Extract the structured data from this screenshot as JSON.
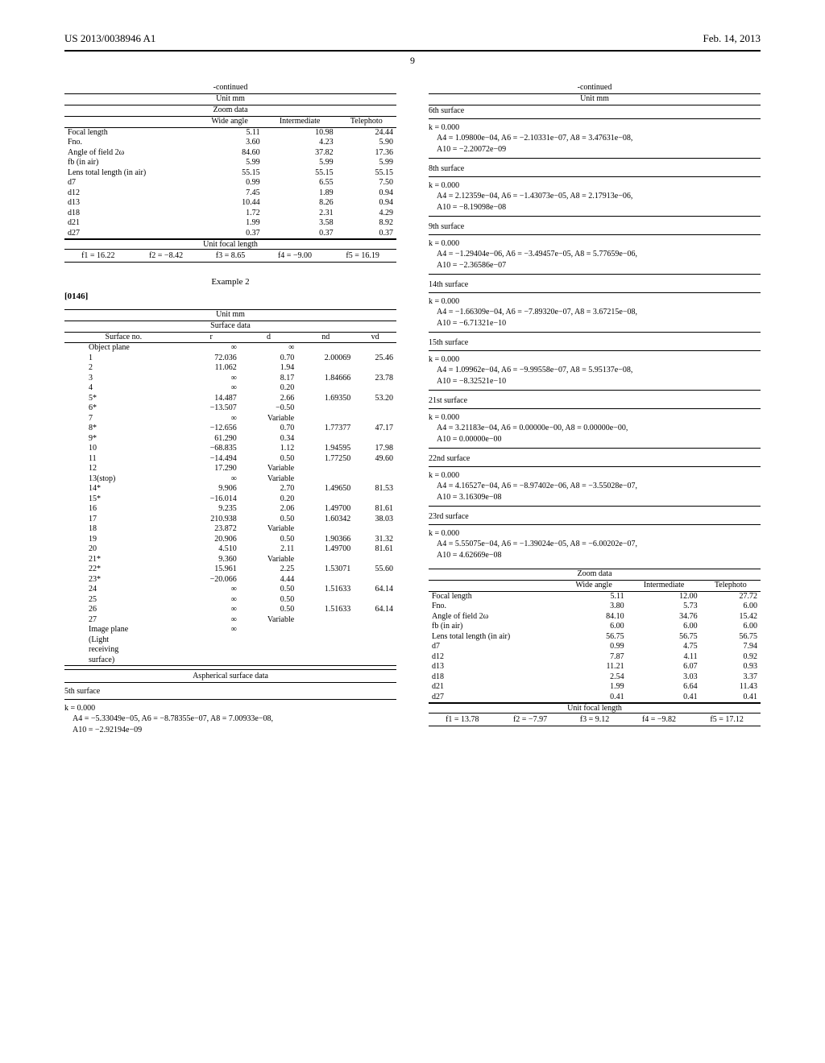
{
  "header": {
    "left": "US 2013/0038946 A1",
    "right": "Feb. 14, 2013",
    "pagenum": "9"
  },
  "left": {
    "continued": "-continued",
    "unit": "Unit mm",
    "zoom_title": "Zoom data",
    "zoom_headers": [
      "",
      "Wide angle",
      "Intermediate",
      "Telephoto"
    ],
    "zoom_rows": [
      [
        "Focal length",
        "5.11",
        "10.98",
        "24.44"
      ],
      [
        "Fno.",
        "3.60",
        "4.23",
        "5.90"
      ],
      [
        "Angle of field 2ω",
        "84.60",
        "37.82",
        "17.36"
      ],
      [
        "fb (in air)",
        "5.99",
        "5.99",
        "5.99"
      ],
      [
        "Lens total length (in air)",
        "55.15",
        "55.15",
        "55.15"
      ],
      [
        "d7",
        "0.99",
        "6.55",
        "7.50"
      ],
      [
        "d12",
        "7.45",
        "1.89",
        "0.94"
      ],
      [
        "d13",
        "10.44",
        "8.26",
        "0.94"
      ],
      [
        "d18",
        "1.72",
        "2.31",
        "4.29"
      ],
      [
        "d21",
        "1.99",
        "3.58",
        "8.92"
      ],
      [
        "d27",
        "0.37",
        "0.37",
        "0.37"
      ]
    ],
    "unit_focal_title": "Unit focal length",
    "unit_focal": [
      "f1 = 16.22",
      "f2 = −8.42",
      "f3 = 8.65",
      "f4 = −9.00",
      "f5 = 16.19"
    ],
    "example2": "Example 2",
    "para": "[0146]",
    "surface_title": "Surface data",
    "surface_headers": [
      "Surface no.",
      "r",
      "d",
      "nd",
      "vd"
    ],
    "surface_rows": [
      [
        "Object plane",
        "∞",
        "∞",
        "",
        ""
      ],
      [
        "1",
        "72.036",
        "0.70",
        "2.00069",
        "25.46"
      ],
      [
        "2",
        "11.062",
        "1.94",
        "",
        ""
      ],
      [
        "3",
        "∞",
        "8.17",
        "1.84666",
        "23.78"
      ],
      [
        "4",
        "∞",
        "0.20",
        "",
        ""
      ],
      [
        "5*",
        "14.487",
        "2.66",
        "1.69350",
        "53.20"
      ],
      [
        "6*",
        "−13.507",
        "−0.50",
        "",
        ""
      ],
      [
        "7",
        "∞",
        "Variable",
        "",
        ""
      ],
      [
        "8*",
        "−12.656",
        "0.70",
        "1.77377",
        "47.17"
      ],
      [
        "9*",
        "61.290",
        "0.34",
        "",
        ""
      ],
      [
        "10",
        "−68.835",
        "1.12",
        "1.94595",
        "17.98"
      ],
      [
        "11",
        "−14.494",
        "0.50",
        "1.77250",
        "49.60"
      ],
      [
        "12",
        "17.290",
        "Variable",
        "",
        ""
      ],
      [
        "13(stop)",
        "∞",
        "Variable",
        "",
        ""
      ],
      [
        "14*",
        "9.906",
        "2.70",
        "1.49650",
        "81.53"
      ],
      [
        "15*",
        "−16.014",
        "0.20",
        "",
        ""
      ],
      [
        "16",
        "9.235",
        "2.06",
        "1.49700",
        "81.61"
      ],
      [
        "17",
        "210.938",
        "0.50",
        "1.60342",
        "38.03"
      ],
      [
        "18",
        "23.872",
        "Variable",
        "",
        ""
      ],
      [
        "19",
        "20.906",
        "0.50",
        "1.90366",
        "31.32"
      ],
      [
        "20",
        "4.510",
        "2.11",
        "1.49700",
        "81.61"
      ],
      [
        "21*",
        "9.360",
        "Variable",
        "",
        ""
      ],
      [
        "22*",
        "15.961",
        "2.25",
        "1.53071",
        "55.60"
      ],
      [
        "23*",
        "−20.066",
        "4.44",
        "",
        ""
      ],
      [
        "24",
        "∞",
        "0.50",
        "1.51633",
        "64.14"
      ],
      [
        "25",
        "∞",
        "0.50",
        "",
        ""
      ],
      [
        "26",
        "∞",
        "0.50",
        "1.51633",
        "64.14"
      ],
      [
        "27",
        "∞",
        "Variable",
        "",
        ""
      ],
      [
        "Image plane",
        "∞",
        "",
        "",
        ""
      ],
      [
        "(Light",
        "",
        "",
        "",
        ""
      ],
      [
        "receiving",
        "",
        "",
        "",
        ""
      ],
      [
        "surface)",
        "",
        "",
        "",
        ""
      ]
    ],
    "asph_title": "Aspherical surface data",
    "asph_5th": "5th surface",
    "asph_5th_k": "k = 0.000",
    "asph_5th_a": "A4 = −5.33049e−05, A6 = −8.78355e−07, A8 = 7.00933e−08,",
    "asph_5th_b": "A10 = −2.92194e−09"
  },
  "right": {
    "continued": "-continued",
    "unit": "Unit mm",
    "blocks": [
      {
        "surf": "6th surface",
        "k": "k = 0.000",
        "a": "A4 = 1.09800e−04, A6 = −2.10331e−07, A8 = 3.47631e−08,",
        "b": "A10 = −2.20072e−09"
      },
      {
        "surf": "8th surface",
        "k": "k = 0.000",
        "a": "A4 = 2.12359e−04, A6 = −1.43073e−05, A8 = 2.17913e−06,",
        "b": "A10 = −8.19098e−08"
      },
      {
        "surf": "9th surface",
        "k": "k = 0.000",
        "a": "A4 = −1.29404e−06, A6 = −3.49457e−05, A8 = 5.77659e−06,",
        "b": "A10 = −2.36586e−07"
      },
      {
        "surf": "14th surface",
        "k": "k = 0.000",
        "a": "A4 = −1.66309e−04, A6 = −7.89320e−07, A8 = 3.67215e−08,",
        "b": "A10 = −6.71321e−10"
      },
      {
        "surf": "15th surface",
        "k": "k = 0.000",
        "a": "A4 = 1.09962e−04, A6 = −9.99558e−07, A8 = 5.95137e−08,",
        "b": "A10 = −8.32521e−10"
      },
      {
        "surf": "21st surface",
        "k": "k = 0.000",
        "a": "A4 = 3.21183e−04, A6 = 0.00000e−00, A8 = 0.00000e−00,",
        "b": "A10 = 0.00000e−00"
      },
      {
        "surf": "22nd surface",
        "k": "k = 0.000",
        "a": "A4 = 4.16527e−04, A6 = −8.97402e−06, A8 = −3.55028e−07,",
        "b": "A10 = 3.16309e−08"
      },
      {
        "surf": "23rd surface",
        "k": "k = 0.000",
        "a": "A4 = 5.55075e−04, A6 = −1.39024e−05, A8 = −6.00202e−07,",
        "b": "A10 = 4.62669e−08"
      }
    ],
    "zoom_title": "Zoom data",
    "zoom_headers": [
      "",
      "Wide angle",
      "Intermediate",
      "Telephoto"
    ],
    "zoom_rows": [
      [
        "Focal length",
        "5.11",
        "12.00",
        "27.72"
      ],
      [
        "Fno.",
        "3.80",
        "5.73",
        "6.00"
      ],
      [
        "Angle of field 2ω",
        "84.10",
        "34.76",
        "15.42"
      ],
      [
        "fb (in air)",
        "6.00",
        "6.00",
        "6.00"
      ],
      [
        "Lens total length (in air)",
        "56.75",
        "56.75",
        "56.75"
      ],
      [
        "d7",
        "0.99",
        "4.75",
        "7.94"
      ],
      [
        "d12",
        "7.87",
        "4.11",
        "0.92"
      ],
      [
        "d13",
        "11.21",
        "6.07",
        "0.93"
      ],
      [
        "d18",
        "2.54",
        "3.03",
        "3.37"
      ],
      [
        "d21",
        "1.99",
        "6.64",
        "11.43"
      ],
      [
        "d27",
        "0.41",
        "0.41",
        "0.41"
      ]
    ],
    "unit_focal_title": "Unit focal length",
    "unit_focal": [
      "f1 = 13.78",
      "f2 = −7.97",
      "f3 = 9.12",
      "f4 = −9.82",
      "f5 = 17.12"
    ]
  }
}
